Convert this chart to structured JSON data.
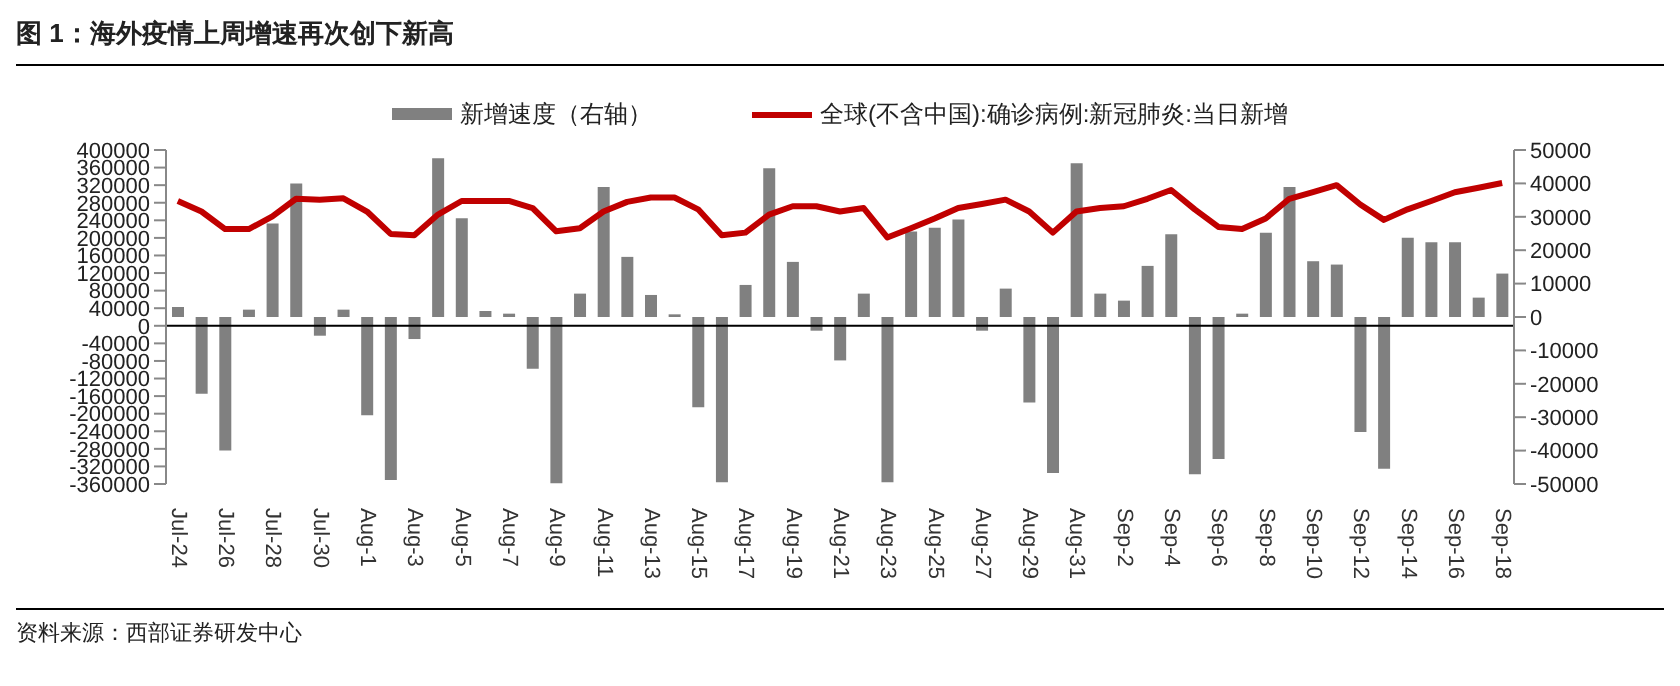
{
  "chart_data": {
    "type": "bar",
    "title": "图 1：海外疫情上周增速再次创下新高",
    "categories": [
      "Jul-24",
      null,
      "Jul-26",
      null,
      "Jul-28",
      null,
      "Jul-30",
      null,
      "Aug-1",
      null,
      "Aug-3",
      null,
      "Aug-5",
      null,
      "Aug-7",
      null,
      "Aug-9",
      null,
      "Aug-11",
      null,
      "Aug-13",
      null,
      "Aug-15",
      null,
      "Aug-17",
      null,
      "Aug-19",
      null,
      "Aug-21",
      null,
      "Aug-23",
      null,
      "Aug-25",
      null,
      "Aug-27",
      null,
      "Aug-29",
      null,
      "Aug-31",
      null,
      "Sep-2",
      null,
      "Sep-4",
      null,
      "Sep-6",
      null,
      "Sep-8",
      null,
      "Sep-10",
      null,
      "Sep-12",
      null,
      "Sep-14",
      null,
      "Sep-16",
      null,
      "Sep-18"
    ],
    "series": [
      {
        "name": "新增速度（右轴）",
        "axis": "y2",
        "color": "#808080",
        "values": [
          3000,
          -23000,
          -40000,
          2200,
          28000,
          40000,
          -5600,
          2200,
          -29400,
          -48800,
          -6600,
          47500,
          29600,
          1800,
          1000,
          -15500,
          -49800,
          7000,
          38900,
          18000,
          6600,
          800,
          -27000,
          -49500,
          9600,
          44500,
          16500,
          -4100,
          -13000,
          7000,
          -49500,
          25600,
          26700,
          29200,
          -4100,
          8500,
          -25600,
          -46700,
          46000,
          7000,
          4900,
          15300,
          24800,
          -47100,
          -42500,
          1000,
          25200,
          38900,
          16700,
          15700,
          -34400,
          -45400,
          23700,
          22400,
          22400,
          5800,
          13000
        ]
      },
      {
        "name": "全球(不含中国):确诊病例:新冠肺炎:当日新增",
        "type": "line",
        "axis": "y",
        "color": "#c00000",
        "values": [
          284000,
          260000,
          220000,
          220000,
          249000,
          289000,
          287000,
          290000,
          260000,
          209000,
          206000,
          253000,
          284000,
          284000,
          284000,
          268000,
          215000,
          222000,
          260000,
          282000,
          292000,
          292000,
          265000,
          206000,
          212000,
          253000,
          272000,
          272000,
          260000,
          268000,
          201000,
          222000,
          244000,
          268000,
          277000,
          287000,
          260000,
          212000,
          260000,
          268000,
          272000,
          289000,
          309000,
          265000,
          225000,
          220000,
          244000,
          289000,
          304000,
          320000,
          276000,
          241000,
          265000,
          284000,
          304000,
          314000,
          325000
        ]
      }
    ],
    "ylim": [
      -360000,
      400000
    ],
    "yticks": [
      -360000,
      -320000,
      -280000,
      -240000,
      -200000,
      -160000,
      -120000,
      -80000,
      -40000,
      0,
      40000,
      80000,
      120000,
      160000,
      200000,
      240000,
      280000,
      320000,
      360000,
      400000
    ],
    "y2lim": [
      -50000,
      50000
    ],
    "y2ticks": [
      -50000,
      -40000,
      -30000,
      -20000,
      -10000,
      0,
      10000,
      20000,
      30000,
      40000,
      50000
    ],
    "ref_lines": [
      {
        "axis": "y",
        "value": 0,
        "color": "#000000"
      }
    ],
    "legend": "top",
    "grid": false,
    "annotations": [
      "资料来源：西部证券研发中心"
    ]
  }
}
